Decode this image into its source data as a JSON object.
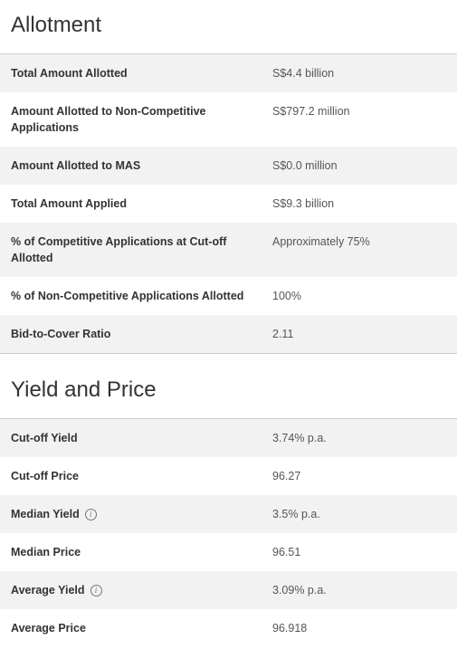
{
  "allotment": {
    "title": "Allotment",
    "rows": [
      [
        "Total Amount Allotted",
        "S$4.4 billion"
      ],
      [
        "Amount Allotted to Non-Competitive Applications",
        "S$797.2 million"
      ],
      [
        "Amount Allotted to MAS",
        "S$0.0 million"
      ],
      [
        "Total Amount Applied",
        "S$9.3 billion"
      ],
      [
        "% of Competitive Applications at Cut-off Allotted",
        "Approximately 75%"
      ],
      [
        "% of Non-Competitive Applications Allotted",
        "100%"
      ],
      [
        "Bid-to-Cover Ratio",
        "2.11"
      ]
    ]
  },
  "yield_and_price": {
    "title": "Yield and Price",
    "rows": [
      [
        "Cut-off Yield",
        "3.74% p.a."
      ],
      [
        "Cut-off Price",
        "96.27"
      ],
      [
        "Median Yield",
        "3.5% p.a."
      ],
      [
        "Median Price",
        "96.51"
      ],
      [
        "Average Yield",
        "3.09% p.a."
      ],
      [
        "Average Price",
        "96.918"
      ]
    ]
  }
}
